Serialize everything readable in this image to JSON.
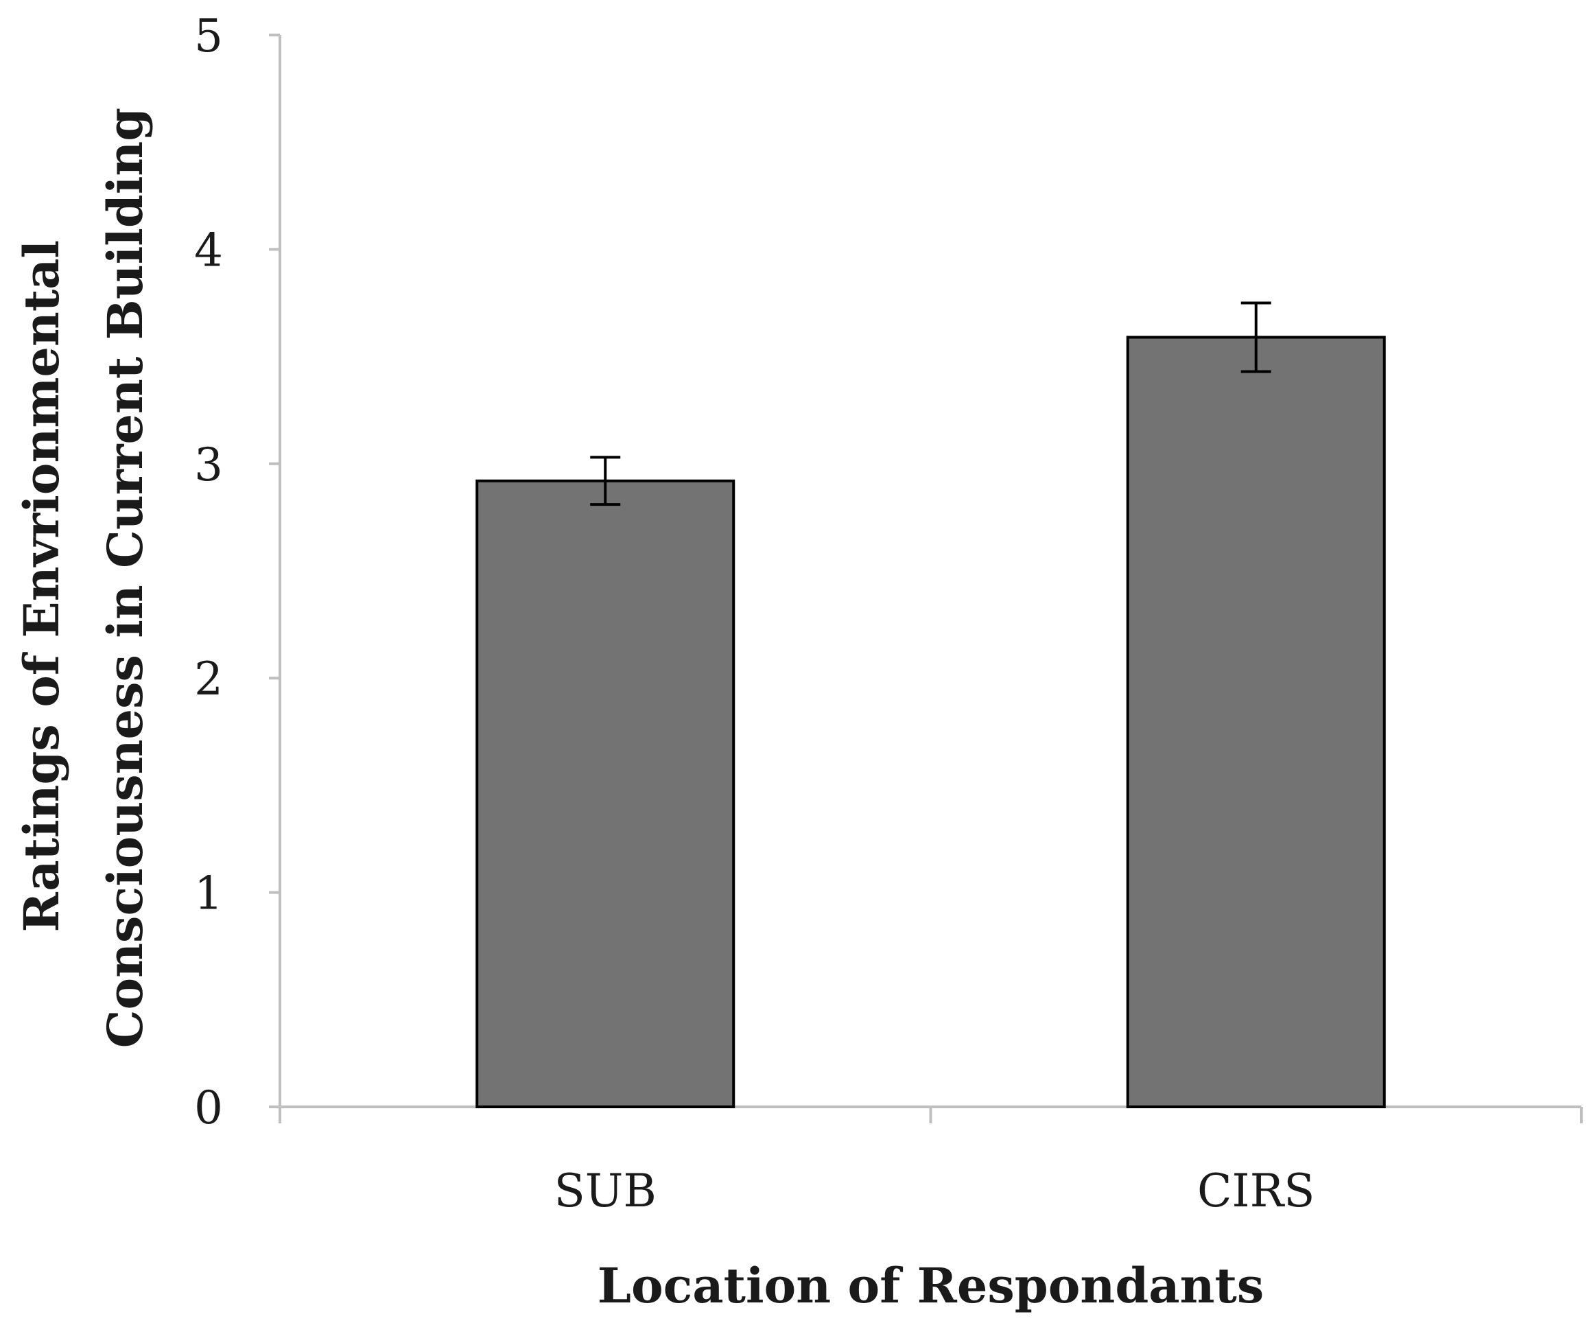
{
  "chart_data": {
    "type": "bar",
    "categories": [
      "SUB",
      "CIRS"
    ],
    "values": [
      2.92,
      3.59
    ],
    "error": [
      0.11,
      0.16
    ],
    "ylim": [
      0,
      5
    ],
    "yticks": [
      "0",
      "1",
      "2",
      "3",
      "4",
      "5"
    ],
    "xlabel": "Location of Respondants",
    "ylabel_lines": [
      "Ratings of Envrionmental",
      "Consciousness in Current Building"
    ],
    "grid": false,
    "legend": "none",
    "colors": {
      "bar_fill": "#737373",
      "bar_stroke": "#000000",
      "axis": "#bfbfbf",
      "error_bar": "#000000"
    }
  }
}
